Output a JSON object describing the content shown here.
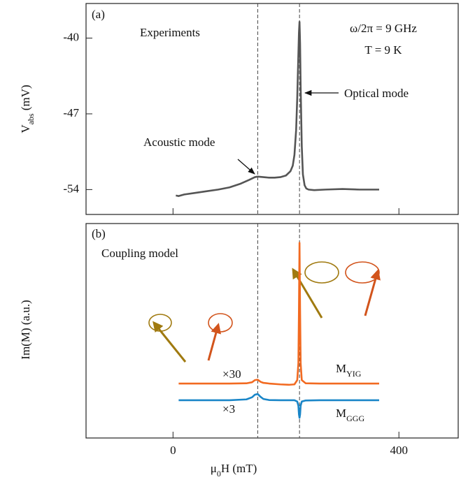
{
  "chart_data": [
    {
      "type": "line",
      "title": "(a)",
      "texts": [
        "Experiments",
        "ω/2π = 9 GHz",
        "T = 9 K"
      ],
      "annotations": [
        "Acoustic mode",
        "Optical mode"
      ],
      "ylabel": [
        "V",
        "abs",
        " (mV)"
      ],
      "xlim": [
        -154,
        505
      ],
      "xticks": [
        0,
        400
      ],
      "ylim": [
        -56.3,
        -36.8
      ],
      "yticks": [
        -40,
        -47,
        -54
      ],
      "vlines": [
        150,
        224
      ],
      "x": [
        5,
        10,
        20,
        40,
        60,
        80,
        100,
        120,
        135,
        145,
        150,
        160,
        170,
        180,
        190,
        200,
        208,
        212,
        215,
        218,
        220,
        222,
        223,
        224,
        225,
        226,
        228,
        230,
        233,
        236,
        240,
        250,
        270,
        300,
        330,
        365
      ],
      "series": [
        {
          "color": "#555555",
          "values": [
            -54.55,
            -54.6,
            -54.45,
            -54.3,
            -54.15,
            -54.0,
            -53.8,
            -53.45,
            -53.1,
            -52.85,
            -52.8,
            -52.85,
            -52.9,
            -52.9,
            -52.85,
            -52.7,
            -52.3,
            -51.8,
            -50.8,
            -48.5,
            -45.5,
            -41.5,
            -39.5,
            -38.5,
            -40.5,
            -44.5,
            -50.0,
            -52.6,
            -53.6,
            -53.9,
            -54.0,
            -54.05,
            -54.0,
            -53.95,
            -54.0,
            -54.0
          ]
        }
      ]
    },
    {
      "type": "line",
      "title": "(b)",
      "texts": [
        "Coupling model"
      ],
      "ylabel": [
        "Im(M) (a.u.)"
      ],
      "xlabel": [
        "μ",
        "0",
        "H  (mT)"
      ],
      "xlim": [
        -154,
        505
      ],
      "xticks": [
        0,
        400
      ],
      "ylim": [
        0,
        10
      ],
      "vlines": [
        150,
        224
      ],
      "x": [
        10,
        100,
        130,
        140,
        145,
        150,
        155,
        160,
        170,
        190,
        205,
        215,
        220,
        222,
        223,
        224,
        225,
        226,
        228,
        235,
        260,
        365
      ],
      "series": [
        {
          "name": [
            "M",
            "YIG"
          ],
          "scale_label": "×30",
          "color": "#f26a21",
          "values": [
            2.54,
            2.54,
            2.55,
            2.6,
            2.7,
            2.72,
            2.62,
            2.57,
            2.54,
            2.5,
            2.48,
            2.5,
            2.7,
            3.5,
            6.0,
            9.1,
            6.0,
            3.5,
            2.7,
            2.55,
            2.54,
            2.54
          ]
        },
        {
          "name": [
            "M",
            "GGG"
          ],
          "scale_label": "×3",
          "color": "#1a86c8",
          "values": [
            1.76,
            1.76,
            1.8,
            1.9,
            2.02,
            2.05,
            1.92,
            1.82,
            1.77,
            1.76,
            1.76,
            1.76,
            1.7,
            1.5,
            1.1,
            0.94,
            1.1,
            1.5,
            1.7,
            1.75,
            1.76,
            1.76
          ]
        }
      ]
    }
  ]
}
